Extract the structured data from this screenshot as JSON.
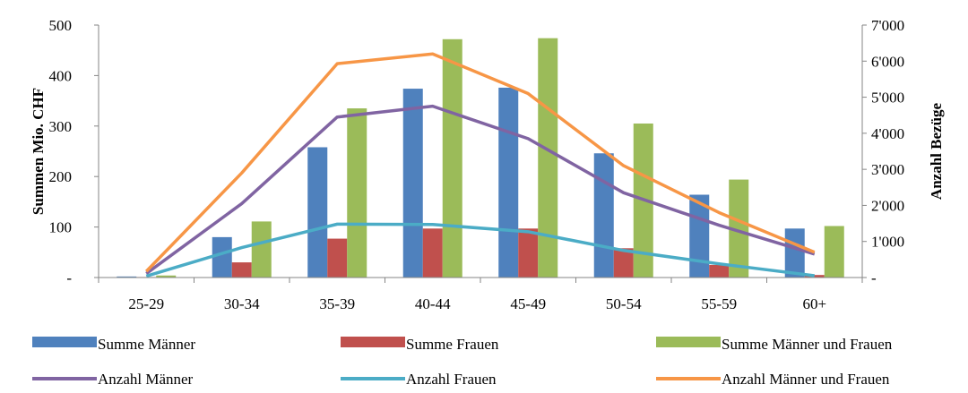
{
  "chart_data": {
    "type": "bar",
    "categories": [
      "25-29",
      "30-34",
      "35-39",
      "40-44",
      "45-49",
      "50-54",
      "55-59",
      "60+"
    ],
    "bar_series": [
      {
        "name": "Summe Männer",
        "color": "#4F81BD",
        "values": [
          2,
          80,
          258,
          374,
          376,
          246,
          164,
          97
        ]
      },
      {
        "name": "Summe Frauen",
        "color": "#C0504D",
        "values": [
          1,
          30,
          77,
          97,
          97,
          58,
          25,
          5
        ]
      },
      {
        "name": "Summe Männer und Frauen",
        "color": "#9BBB59",
        "values": [
          4,
          111,
          335,
          472,
          474,
          305,
          194,
          102
        ]
      }
    ],
    "line_series": [
      {
        "name": "Anzahl Männer",
        "color": "#8064A2",
        "values": [
          110,
          2050,
          4450,
          4750,
          3850,
          2350,
          1450,
          650
        ]
      },
      {
        "name": "Anzahl Frauen",
        "color": "#4BACC6",
        "values": [
          40,
          830,
          1480,
          1470,
          1270,
          750,
          380,
          50
        ]
      },
      {
        "name": "Anzahl Männer und Frauen",
        "color": "#F79646",
        "values": [
          170,
          2900,
          5930,
          6200,
          5100,
          3100,
          1800,
          700
        ]
      }
    ],
    "ylabel": "Summen Mio. CHF",
    "y2label": "Anzahl Bezüge",
    "ylim": [
      0,
      500
    ],
    "y2lim": [
      0,
      7000
    ],
    "y_ticks": [
      "-",
      "100",
      "200",
      "300",
      "400",
      "500"
    ],
    "y2_ticks": [
      "-",
      "1'000",
      "2'000",
      "3'000",
      "4'000",
      "5'000",
      "6'000",
      "7'000"
    ],
    "legend_position": "bottom"
  }
}
